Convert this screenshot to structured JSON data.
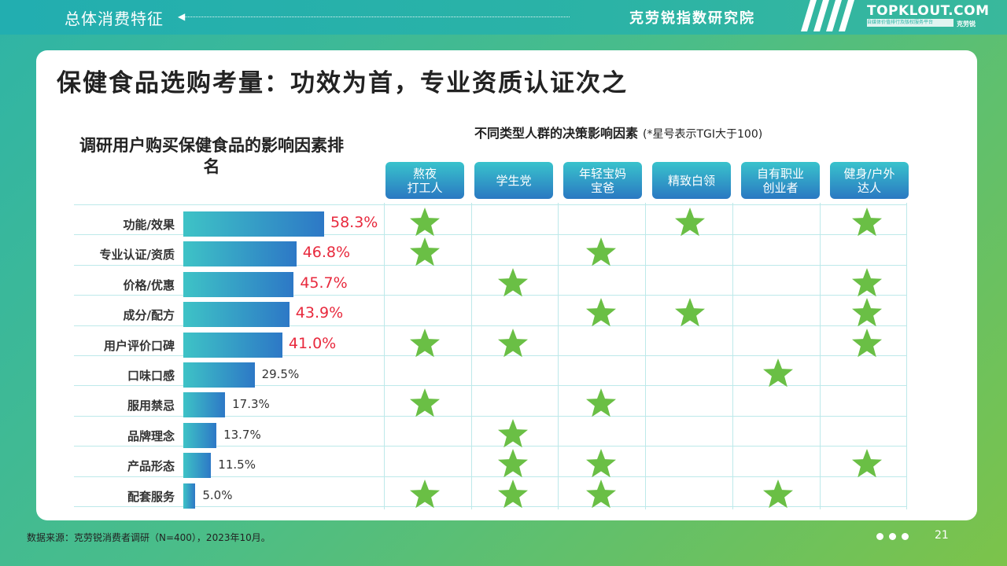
{
  "header": {
    "section_title": "总体消费特征",
    "brand_cn": "克劳锐指数研究院",
    "brand_en": "TOPKLOUT.COM",
    "brand_tag": "自媒体价值排行及版权服务平台",
    "brand_small": "克劳锐"
  },
  "main_title": "保健食品选购考量：功效为首，专业资质认证次之",
  "chart_data": [
    {
      "type": "bar",
      "orientation": "horizontal",
      "title": "调研用户购买保健食品的影响因素排名",
      "categories": [
        "功能/效果",
        "专业认证/资质",
        "价格/优惠",
        "成分/配方",
        "用户评价口碑",
        "口味口感",
        "服用禁忌",
        "品牌理念",
        "产品形态",
        "配套服务"
      ],
      "values": [
        58.3,
        46.8,
        45.7,
        43.9,
        41.0,
        29.5,
        17.3,
        13.7,
        11.5,
        5.0
      ],
      "value_labels": [
        "58.3%",
        "46.8%",
        "45.7%",
        "43.9%",
        "41.0%",
        "29.5%",
        "17.3%",
        "13.7%",
        "11.5%",
        "5.0%"
      ],
      "highlight_color": "#e8293d",
      "bar_colors": [
        "#3ec3c6",
        "#2d78c6"
      ],
      "xlim": [
        0,
        58.3
      ]
    },
    {
      "type": "table",
      "title": "不同类型人群的决策影响因素",
      "note": "(*星号表示TGI大于100)",
      "columns": [
        "熬夜\n打工人",
        "学生党",
        "年轻宝妈\n宝爸",
        "精致白领",
        "自有职业\n创业者",
        "健身/户外\n达人"
      ],
      "star_color": "#6abf45",
      "stars": [
        [
          1,
          0,
          0,
          1,
          0,
          1
        ],
        [
          1,
          0,
          1,
          0,
          0,
          0
        ],
        [
          0,
          1,
          0,
          0,
          0,
          1
        ],
        [
          0,
          0,
          1,
          1,
          0,
          1
        ],
        [
          1,
          1,
          0,
          0,
          0,
          1
        ],
        [
          0,
          0,
          0,
          0,
          1,
          0
        ],
        [
          1,
          0,
          1,
          0,
          0,
          0
        ],
        [
          0,
          1,
          0,
          0,
          0,
          0
        ],
        [
          0,
          1,
          1,
          0,
          0,
          1
        ],
        [
          1,
          1,
          1,
          0,
          1,
          0
        ]
      ]
    }
  ],
  "footer": {
    "source": "数据来源：克劳锐消费者调研（N=400），2023年10月。",
    "page": "21"
  }
}
